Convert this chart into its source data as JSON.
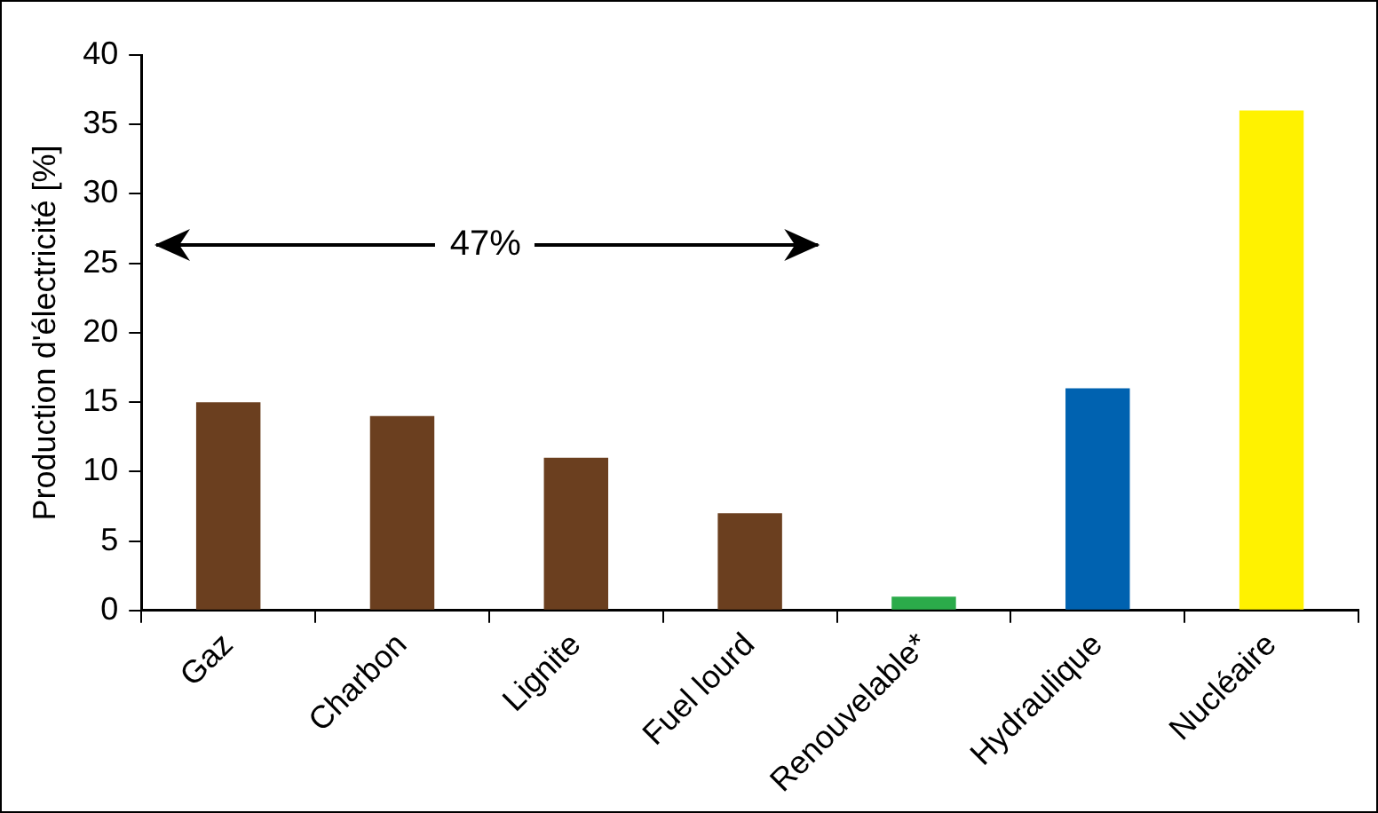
{
  "chart_data": {
    "type": "bar",
    "ylabel": "Production d'électricité [%]",
    "categories": [
      "Gaz",
      "Charbon",
      "Lignite",
      "Fuel lourd",
      "Renouvelable*",
      "Hydraulique",
      "Nucléaire"
    ],
    "values": [
      15,
      14,
      11,
      7,
      1,
      16,
      36
    ],
    "colors": [
      "#6b3f1f",
      "#6b3f1f",
      "#6b3f1f",
      "#6b3f1f",
      "#2bab4a",
      "#0062b0",
      "#fff200"
    ],
    "ylim": [
      0,
      40
    ],
    "yticks": [
      0,
      5,
      10,
      15,
      20,
      25,
      30,
      35,
      40
    ],
    "grid": false,
    "legend": false,
    "annotations": [
      "47%"
    ]
  }
}
